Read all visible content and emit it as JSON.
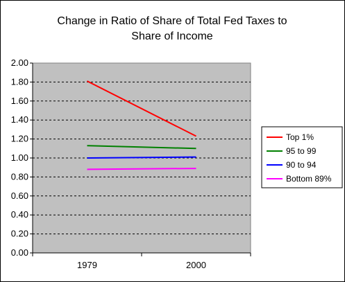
{
  "chart_data": {
    "type": "line",
    "title_lines": [
      "Change in Ratio of Share of Total Fed Taxes to",
      "Share of Income"
    ],
    "xlabel": "",
    "ylabel": "",
    "categories": [
      "1979",
      "2000"
    ],
    "ylim": [
      0,
      2
    ],
    "ystep": 0.2,
    "grid": true,
    "plot_background": "#c0c0c0",
    "legend_position": "right",
    "series": [
      {
        "name": "Top 1%",
        "values": [
          1.81,
          1.23
        ],
        "color": "#ff0000"
      },
      {
        "name": "95 to 99",
        "values": [
          1.13,
          1.1
        ],
        "color": "#008000"
      },
      {
        "name": "90 to 94",
        "values": [
          1.0,
          1.01
        ],
        "color": "#0000ff"
      },
      {
        "name": "Bottom 89%",
        "values": [
          0.88,
          0.89
        ],
        "color": "#ff00ff"
      }
    ]
  }
}
